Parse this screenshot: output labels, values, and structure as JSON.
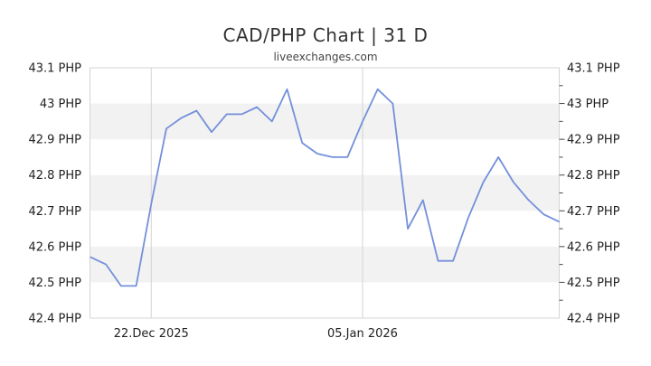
{
  "title": "CAD/PHP Chart | 31 D",
  "subtitle": "liveexchanges.com",
  "chart_data": {
    "type": "line",
    "title": "CAD/PHP Chart | 31 D",
    "subtitle": "liveexchanges.com",
    "pair": "CAD/PHP",
    "period": "31 D",
    "series": [
      {
        "name": "CAD/PHP",
        "color": "#7490db",
        "values": [
          42.57,
          42.55,
          42.49,
          42.49,
          42.72,
          42.93,
          42.96,
          42.98,
          42.92,
          42.97,
          42.97,
          42.99,
          42.95,
          43.04,
          42.89,
          42.86,
          42.85,
          42.85,
          42.95,
          43.04,
          43.0,
          42.65,
          42.73,
          42.56,
          42.56,
          42.68,
          42.78,
          42.85,
          42.78,
          42.73,
          42.69,
          42.67
        ]
      }
    ],
    "x_tick_labels": [
      {
        "index": 4,
        "label": "22.Dec 2025"
      },
      {
        "index": 18,
        "label": "05.Jan 2026"
      }
    ],
    "y_axis": {
      "min": 42.4,
      "max": 43.1,
      "step": 0.1,
      "unit": "PHP",
      "tick_labels": [
        "43.1 PHP",
        "43 PHP",
        "42.9 PHP",
        "42.8 PHP",
        "42.7 PHP",
        "42.6 PHP",
        "42.5 PHP",
        "42.4 PHP"
      ],
      "label_sides": [
        "left",
        "right"
      ]
    },
    "plot_bands": [
      [
        43.0,
        42.9
      ],
      [
        42.8,
        42.7
      ],
      [
        42.6,
        42.5
      ]
    ],
    "grid": "x-gridlines-at-date-labels-only",
    "legend": false,
    "markers": false,
    "colors": {
      "line": "#7490db",
      "band": "#f2f2f2",
      "plot_border": "#d4d4d4",
      "gridline": "#d4d4d4",
      "tick": "#444444",
      "axis_label": "#222222",
      "title": "#333333",
      "subtitle": "#444444",
      "background": "#ffffff"
    }
  }
}
